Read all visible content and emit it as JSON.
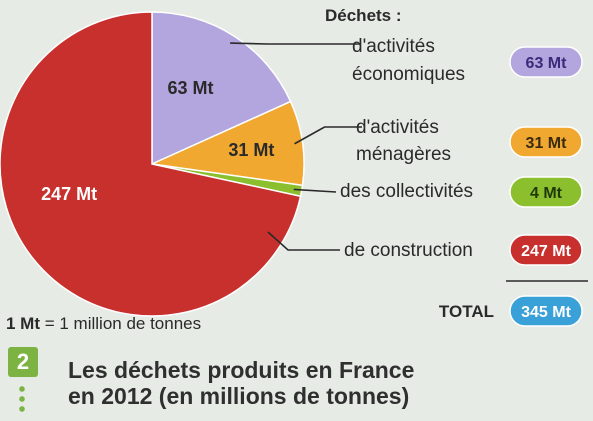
{
  "chart_data": {
    "type": "pie",
    "legend_heading": "Déchets :",
    "unit": "Mt",
    "slices": [
      {
        "label_line1": "d'activités",
        "label_line2": "économiques",
        "value": 63,
        "value_label": "63 Mt",
        "color": "#b3a6de",
        "badge_text_color": "#3a2a7a"
      },
      {
        "label_line1": "d'activités",
        "label_line2": "ménagères",
        "value": 31,
        "value_label": "31 Mt",
        "color": "#f0a830",
        "badge_text_color": "#3a2a10"
      },
      {
        "label_line1": "des collectivités",
        "label_line2": "",
        "value": 4,
        "value_label": "4 Mt",
        "color": "#8cbf2e",
        "badge_text_color": "#1f3a08"
      },
      {
        "label_line1": "de construction",
        "label_line2": "",
        "value": 247,
        "value_label": "247 Mt",
        "color": "#c8302d",
        "badge_text_color": "#ffffff"
      }
    ],
    "total": {
      "label": "TOTAL",
      "value": 345,
      "value_label": "345 Mt",
      "color": "#3aa0d8",
      "badge_text_color": "#ffffff"
    }
  },
  "note": {
    "prefix": "1 Mt",
    "text": " = 1 million de tonnes"
  },
  "figure": {
    "number": "2",
    "title_line1": "Les déchets produits en France",
    "title_line2": "en 2012 (en millions de tonnes)"
  }
}
